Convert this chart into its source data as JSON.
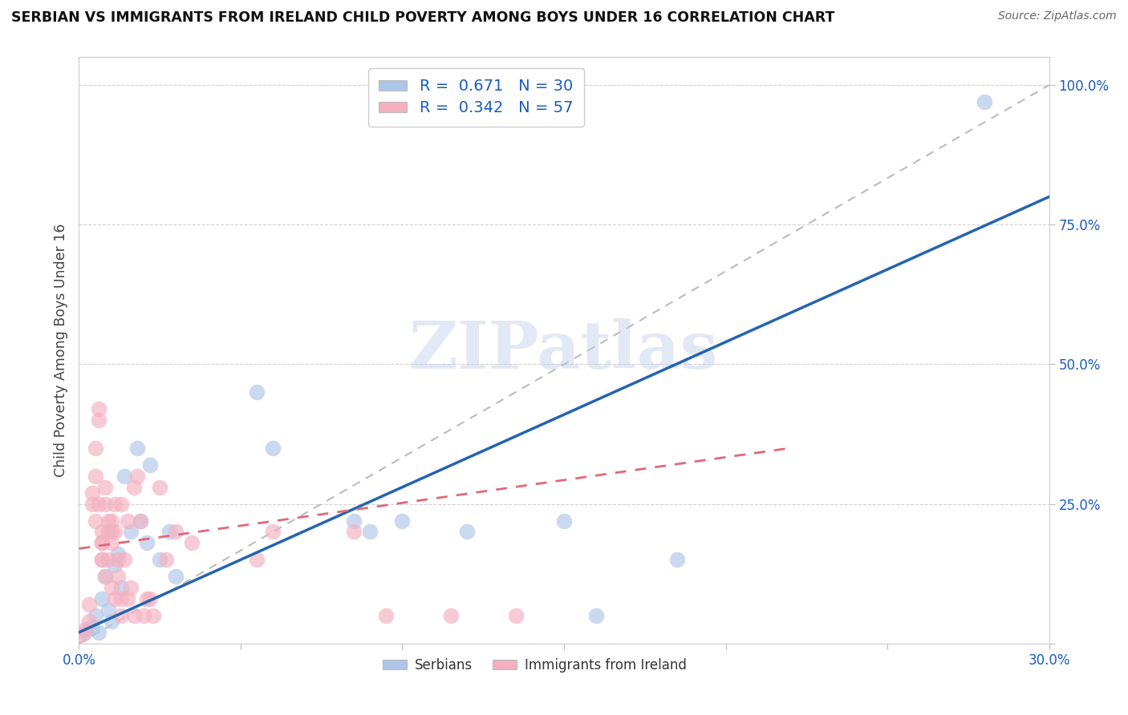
{
  "title": "SERBIAN VS IMMIGRANTS FROM IRELAND CHILD POVERTY AMONG BOYS UNDER 16 CORRELATION CHART",
  "source": "Source: ZipAtlas.com",
  "ylabel_label": "Child Poverty Among Boys Under 16",
  "x_min": 0.0,
  "x_max": 0.3,
  "y_min": 0.0,
  "y_max": 1.05,
  "x_ticks": [
    0.0,
    0.05,
    0.1,
    0.15,
    0.2,
    0.25,
    0.3
  ],
  "x_tick_labels": [
    "0.0%",
    "",
    "",
    "",
    "",
    "",
    "30.0%"
  ],
  "y_tick_labels": [
    "",
    "25.0%",
    "50.0%",
    "75.0%",
    "100.0%"
  ],
  "y_ticks": [
    0.0,
    0.25,
    0.5,
    0.75,
    1.0
  ],
  "serbian_color": "#aec6e8",
  "ireland_color": "#f4b0c0",
  "serbian_line_color": "#2563b0",
  "ireland_line_color": "#e06878",
  "serbia_R": 0.671,
  "serbia_N": 30,
  "ireland_R": 0.342,
  "ireland_N": 57,
  "watermark": "ZIPatlas",
  "serbian_line": [
    [
      0.0,
      0.02
    ],
    [
      0.3,
      0.8
    ]
  ],
  "ireland_line": [
    [
      0.0,
      0.17
    ],
    [
      0.22,
      0.35
    ]
  ],
  "serbian_scatter": [
    [
      0.002,
      0.02
    ],
    [
      0.004,
      0.03
    ],
    [
      0.005,
      0.05
    ],
    [
      0.006,
      0.02
    ],
    [
      0.007,
      0.08
    ],
    [
      0.008,
      0.12
    ],
    [
      0.009,
      0.06
    ],
    [
      0.01,
      0.04
    ],
    [
      0.011,
      0.14
    ],
    [
      0.012,
      0.16
    ],
    [
      0.013,
      0.1
    ],
    [
      0.014,
      0.3
    ],
    [
      0.016,
      0.2
    ],
    [
      0.018,
      0.35
    ],
    [
      0.019,
      0.22
    ],
    [
      0.021,
      0.18
    ],
    [
      0.022,
      0.32
    ],
    [
      0.025,
      0.15
    ],
    [
      0.028,
      0.2
    ],
    [
      0.03,
      0.12
    ],
    [
      0.055,
      0.45
    ],
    [
      0.06,
      0.35
    ],
    [
      0.085,
      0.22
    ],
    [
      0.09,
      0.2
    ],
    [
      0.1,
      0.22
    ],
    [
      0.12,
      0.2
    ],
    [
      0.15,
      0.22
    ],
    [
      0.16,
      0.05
    ],
    [
      0.185,
      0.15
    ],
    [
      0.28,
      0.97
    ]
  ],
  "ireland_scatter": [
    [
      0.001,
      0.015
    ],
    [
      0.002,
      0.025
    ],
    [
      0.003,
      0.07
    ],
    [
      0.003,
      0.04
    ],
    [
      0.004,
      0.25
    ],
    [
      0.004,
      0.27
    ],
    [
      0.005,
      0.3
    ],
    [
      0.005,
      0.22
    ],
    [
      0.005,
      0.35
    ],
    [
      0.006,
      0.4
    ],
    [
      0.006,
      0.42
    ],
    [
      0.006,
      0.25
    ],
    [
      0.007,
      0.15
    ],
    [
      0.007,
      0.18
    ],
    [
      0.007,
      0.2
    ],
    [
      0.007,
      0.15
    ],
    [
      0.007,
      0.18
    ],
    [
      0.008,
      0.12
    ],
    [
      0.008,
      0.25
    ],
    [
      0.008,
      0.28
    ],
    [
      0.009,
      0.22
    ],
    [
      0.009,
      0.2
    ],
    [
      0.009,
      0.15
    ],
    [
      0.01,
      0.18
    ],
    [
      0.01,
      0.1
    ],
    [
      0.01,
      0.22
    ],
    [
      0.01,
      0.2
    ],
    [
      0.011,
      0.08
    ],
    [
      0.011,
      0.25
    ],
    [
      0.011,
      0.2
    ],
    [
      0.012,
      0.15
    ],
    [
      0.012,
      0.12
    ],
    [
      0.013,
      0.08
    ],
    [
      0.013,
      0.05
    ],
    [
      0.013,
      0.25
    ],
    [
      0.014,
      0.15
    ],
    [
      0.015,
      0.22
    ],
    [
      0.015,
      0.08
    ],
    [
      0.016,
      0.1
    ],
    [
      0.017,
      0.28
    ],
    [
      0.017,
      0.05
    ],
    [
      0.018,
      0.3
    ],
    [
      0.019,
      0.22
    ],
    [
      0.02,
      0.05
    ],
    [
      0.021,
      0.08
    ],
    [
      0.022,
      0.08
    ],
    [
      0.023,
      0.05
    ],
    [
      0.025,
      0.28
    ],
    [
      0.027,
      0.15
    ],
    [
      0.03,
      0.2
    ],
    [
      0.035,
      0.18
    ],
    [
      0.055,
      0.15
    ],
    [
      0.06,
      0.2
    ],
    [
      0.085,
      0.2
    ],
    [
      0.095,
      0.05
    ],
    [
      0.115,
      0.05
    ],
    [
      0.135,
      0.05
    ]
  ]
}
